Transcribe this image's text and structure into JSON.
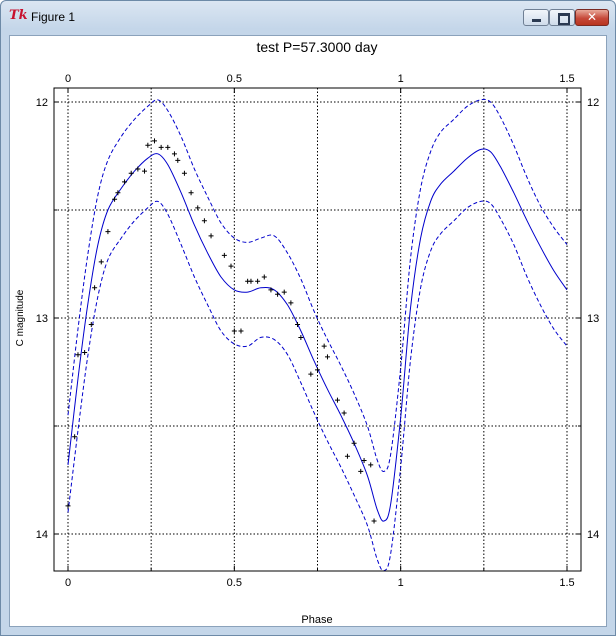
{
  "window": {
    "app_icon": "tk-feather-icon",
    "title": "Figure 1",
    "buttons": [
      "minimize-icon",
      "maximize-icon",
      "close-icon"
    ]
  },
  "chart_data": {
    "type": "line",
    "title": "test P=57.3000 day",
    "xlabel": "Phase",
    "ylabel": "C magnitude",
    "xlim": [
      0,
      1.5
    ],
    "ylim": [
      12,
      14
    ],
    "y_inverted": true,
    "grid": true,
    "grid_style": "dotted",
    "xticks": [
      "0",
      "0.5",
      "1",
      "1.5"
    ],
    "yticks": [
      "12",
      "13",
      "14"
    ],
    "series": [
      {
        "style": "solid",
        "color": "#0000cc",
        "x": [
          0.0,
          0.03,
          0.06,
          0.09,
          0.12,
          0.16,
          0.2,
          0.24,
          0.27,
          0.3,
          0.34,
          0.38,
          0.42,
          0.46,
          0.5,
          0.54,
          0.58,
          0.62,
          0.66,
          0.7,
          0.74,
          0.78,
          0.82,
          0.86,
          0.9,
          0.93,
          0.95,
          0.97,
          1.0,
          1.03,
          1.06,
          1.09,
          1.12,
          1.16,
          1.2,
          1.24,
          1.27,
          1.3,
          1.34,
          1.38,
          1.42,
          1.46,
          1.5
        ],
        "y": [
          13.68,
          13.28,
          12.93,
          12.66,
          12.5,
          12.4,
          12.32,
          12.26,
          12.24,
          12.29,
          12.42,
          12.57,
          12.7,
          12.81,
          12.87,
          12.88,
          12.86,
          12.87,
          12.94,
          13.06,
          13.2,
          13.33,
          13.45,
          13.58,
          13.73,
          13.89,
          13.94,
          13.86,
          13.46,
          12.95,
          12.63,
          12.46,
          12.38,
          12.32,
          12.26,
          12.22,
          12.23,
          12.3,
          12.42,
          12.55,
          12.67,
          12.78,
          12.87
        ]
      },
      {
        "style": "dashed",
        "color": "#0000cc",
        "x": [
          0.0,
          0.03,
          0.06,
          0.09,
          0.12,
          0.16,
          0.2,
          0.24,
          0.27,
          0.3,
          0.34,
          0.38,
          0.42,
          0.46,
          0.5,
          0.54,
          0.58,
          0.62,
          0.66,
          0.7,
          0.74,
          0.78,
          0.82,
          0.86,
          0.9,
          0.93,
          0.95,
          0.97,
          1.0,
          1.03,
          1.06,
          1.09,
          1.12,
          1.16,
          1.2,
          1.24,
          1.27,
          1.3,
          1.34,
          1.38,
          1.42,
          1.46,
          1.5
        ],
        "y": [
          13.45,
          13.05,
          12.7,
          12.43,
          12.27,
          12.16,
          12.08,
          12.02,
          11.99,
          12.04,
          12.16,
          12.31,
          12.44,
          12.56,
          12.63,
          12.65,
          12.63,
          12.62,
          12.7,
          12.82,
          12.97,
          13.1,
          13.22,
          13.35,
          13.5,
          13.66,
          13.71,
          13.63,
          13.23,
          12.72,
          12.4,
          12.23,
          12.14,
          12.08,
          12.02,
          11.99,
          12.0,
          12.07,
          12.2,
          12.35,
          12.48,
          12.58,
          12.66
        ]
      },
      {
        "style": "dashed",
        "color": "#0000cc",
        "x": [
          0.0,
          0.03,
          0.06,
          0.09,
          0.12,
          0.16,
          0.2,
          0.24,
          0.27,
          0.3,
          0.34,
          0.38,
          0.42,
          0.46,
          0.5,
          0.54,
          0.58,
          0.62,
          0.66,
          0.7,
          0.74,
          0.78,
          0.82,
          0.86,
          0.9,
          0.93,
          0.95,
          0.97,
          1.0,
          1.03,
          1.06,
          1.09,
          1.12,
          1.16,
          1.2,
          1.24,
          1.27,
          1.3,
          1.34,
          1.38,
          1.42,
          1.46,
          1.5
        ],
        "y": [
          13.9,
          13.52,
          13.17,
          12.9,
          12.73,
          12.63,
          12.55,
          12.49,
          12.46,
          12.52,
          12.66,
          12.81,
          12.94,
          13.06,
          13.12,
          13.13,
          13.09,
          13.1,
          13.17,
          13.3,
          13.44,
          13.57,
          13.69,
          13.82,
          13.96,
          14.12,
          14.17,
          14.09,
          13.69,
          13.19,
          12.86,
          12.69,
          12.61,
          12.55,
          12.49,
          12.46,
          12.47,
          12.54,
          12.66,
          12.81,
          12.94,
          13.05,
          13.13
        ]
      },
      {
        "style": "markers",
        "marker": "+",
        "color": "#000000",
        "x": [
          0.0,
          0.02,
          0.03,
          0.05,
          0.07,
          0.08,
          0.1,
          0.12,
          0.14,
          0.15,
          0.17,
          0.19,
          0.21,
          0.23,
          0.24,
          0.26,
          0.28,
          0.3,
          0.32,
          0.33,
          0.35,
          0.37,
          0.39,
          0.41,
          0.43,
          0.47,
          0.49,
          0.5,
          0.52,
          0.54,
          0.55,
          0.57,
          0.59,
          0.61,
          0.63,
          0.65,
          0.67,
          0.69,
          0.7,
          0.73,
          0.75,
          0.77,
          0.78,
          0.81,
          0.83,
          0.84,
          0.86,
          0.88,
          0.89,
          0.91,
          0.92
        ],
        "y": [
          13.87,
          13.55,
          13.17,
          13.16,
          13.03,
          12.86,
          12.74,
          12.6,
          12.45,
          12.42,
          12.37,
          12.33,
          12.31,
          12.32,
          12.2,
          12.18,
          12.21,
          12.21,
          12.24,
          12.27,
          12.33,
          12.42,
          12.49,
          12.55,
          12.62,
          12.71,
          12.76,
          13.06,
          13.06,
          12.83,
          12.83,
          12.83,
          12.81,
          12.87,
          12.89,
          12.88,
          12.93,
          13.03,
          13.09,
          13.26,
          13.24,
          13.13,
          13.18,
          13.38,
          13.44,
          13.64,
          13.58,
          13.71,
          13.66,
          13.68,
          13.94
        ]
      }
    ]
  }
}
